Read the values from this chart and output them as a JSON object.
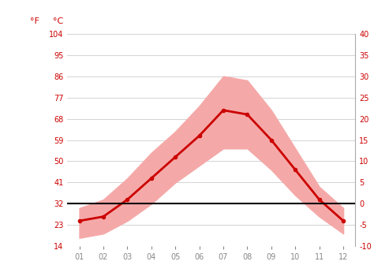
{
  "months": [
    1,
    2,
    3,
    4,
    5,
    6,
    7,
    8,
    9,
    10,
    11,
    12
  ],
  "month_labels": [
    "01",
    "02",
    "03",
    "04",
    "05",
    "06",
    "07",
    "08",
    "09",
    "10",
    "11",
    "12"
  ],
  "avg_temp_c": [
    -4,
    -3,
    1,
    6,
    11,
    16,
    22,
    21,
    15,
    8,
    1,
    -4
  ],
  "high_avg_c": [
    -1,
    1,
    6,
    12,
    17,
    23,
    30,
    29,
    22,
    13,
    4,
    -1
  ],
  "low_avg_c": [
    -8,
    -7,
    -4,
    0,
    5,
    9,
    13,
    13,
    8,
    2,
    -3,
    -7
  ],
  "band_color": "#f4a9a8",
  "line_color": "#cc0000",
  "zero_line_color": "#000000",
  "axis_color": "#cc0000",
  "tick_color": "#888888",
  "ylim_c": [
    -10,
    40
  ],
  "yticks_c": [
    -10,
    -5,
    0,
    5,
    10,
    15,
    20,
    25,
    30,
    35,
    40
  ],
  "yticks_f": [
    14,
    23,
    32,
    41,
    50,
    59,
    68,
    77,
    86,
    95,
    104
  ],
  "background_color": "#ffffff",
  "grid_color": "#cccccc",
  "spine_color": "#aaaaaa"
}
